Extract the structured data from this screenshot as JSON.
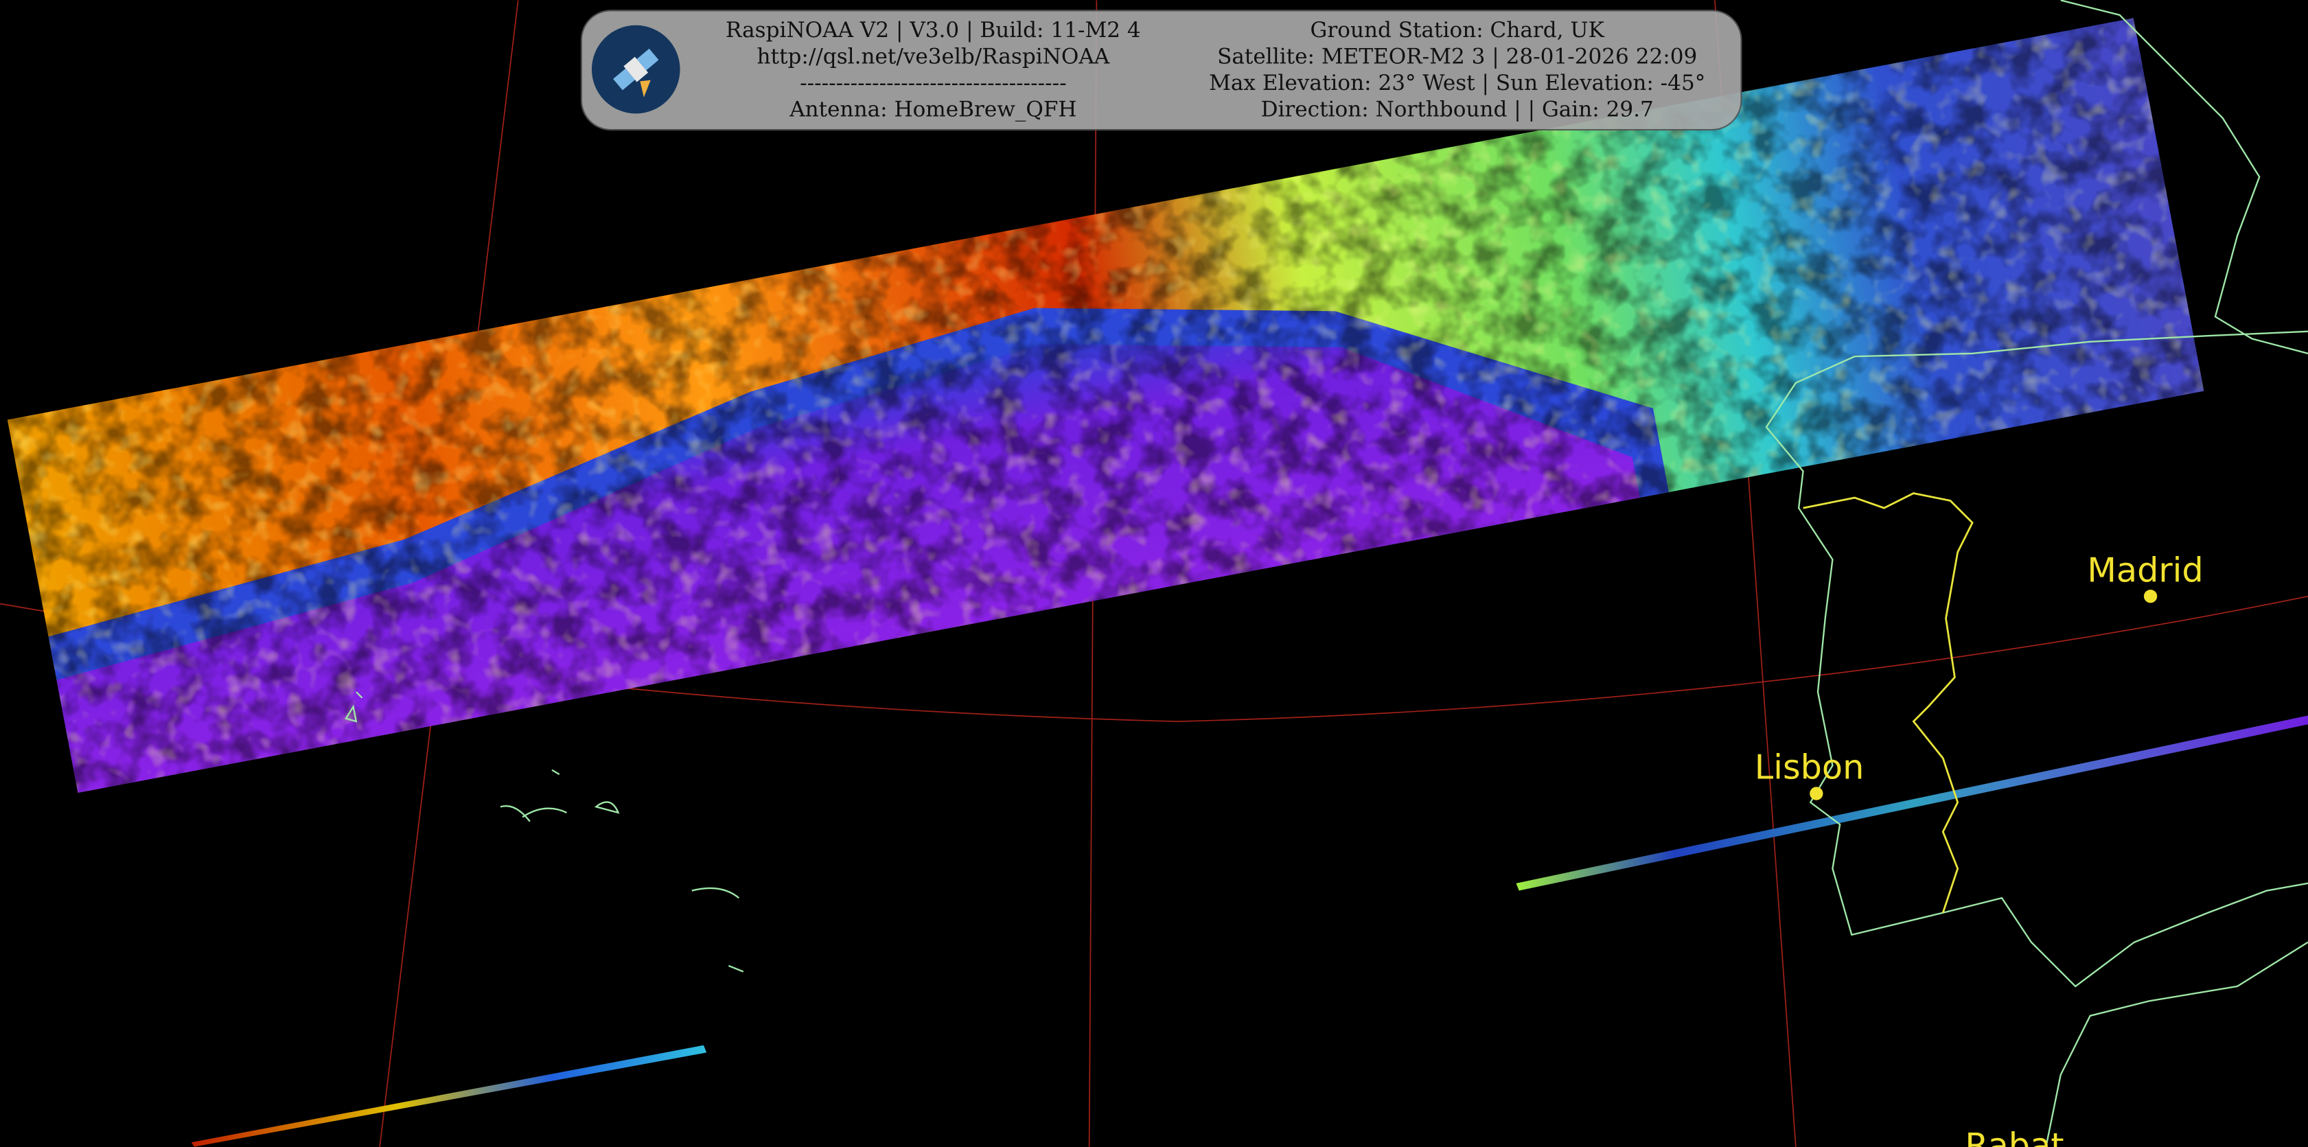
{
  "header": {
    "left": [
      "RaspiNOAA V2 | V3.0 | Build: 11-M2 4",
      "http://qsl.net/ve3elb/RaspiNOAA",
      "-------------------------------------",
      "Antenna: HomeBrew_QFH"
    ],
    "right": [
      "Ground Station: Chard, UK",
      "Satellite: METEOR-M2 3 | 28-01-2026 22:09",
      "Max Elevation: 23° West | Sun Elevation: -45°",
      "Direction: Northbound | | Gain: 29.7"
    ]
  },
  "cities": [
    {
      "label": "Madrid"
    },
    {
      "label": "Lisbon"
    },
    {
      "label": "Rabat"
    }
  ]
}
